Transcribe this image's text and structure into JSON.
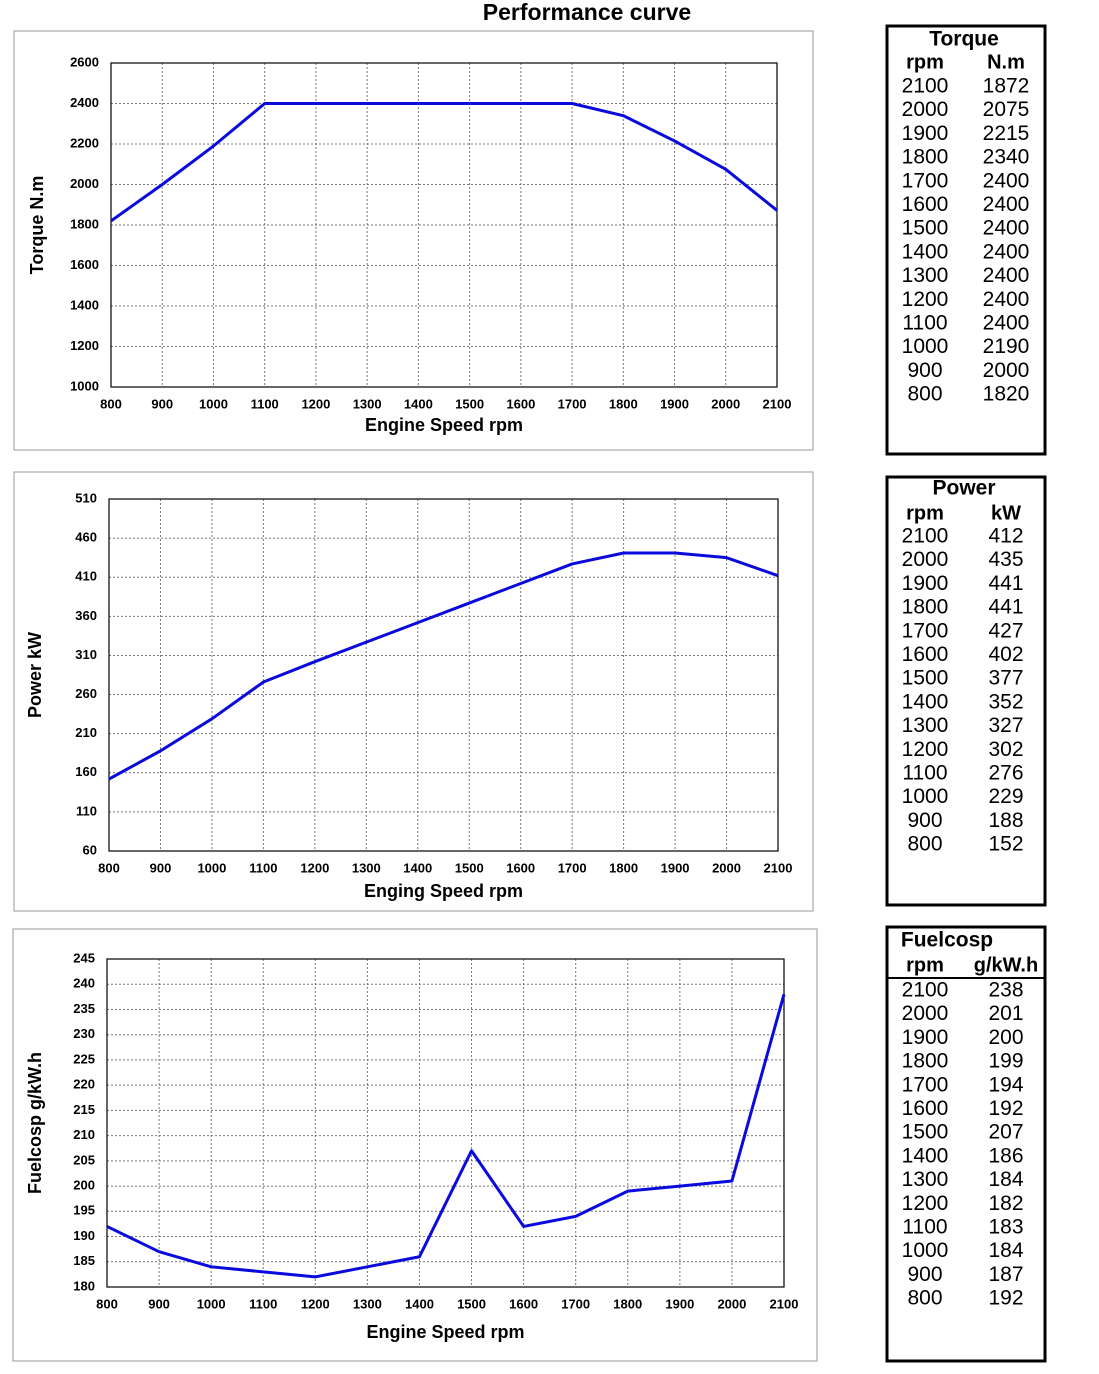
{
  "title": "Performance curve",
  "chart_data": [
    {
      "type": "line",
      "xlabel": "Engine Speed rpm",
      "ylabel": "Torque N.m",
      "color": "#0a0adc",
      "grid": true,
      "x": [
        800,
        900,
        1000,
        1100,
        1200,
        1300,
        1400,
        1500,
        1600,
        1700,
        1800,
        1900,
        2000,
        2100
      ],
      "values": [
        1820,
        2000,
        2190,
        2400,
        2400,
        2400,
        2400,
        2400,
        2400,
        2400,
        2340,
        2215,
        2075,
        1872
      ],
      "xlim": [
        800,
        2100
      ],
      "xticks": [
        800,
        900,
        1000,
        1100,
        1200,
        1300,
        1400,
        1500,
        1600,
        1700,
        1800,
        1900,
        2000,
        2100
      ],
      "ylim": [
        1000,
        2600
      ],
      "yticks": [
        1000,
        1200,
        1400,
        1600,
        1800,
        2000,
        2200,
        2400,
        2600
      ],
      "table": {
        "title": "Torque",
        "columns": [
          "rpm",
          "N.m"
        ],
        "rows": [
          [
            2100,
            1872
          ],
          [
            2000,
            2075
          ],
          [
            1900,
            2215
          ],
          [
            1800,
            2340
          ],
          [
            1700,
            2400
          ],
          [
            1600,
            2400
          ],
          [
            1500,
            2400
          ],
          [
            1400,
            2400
          ],
          [
            1300,
            2400
          ],
          [
            1200,
            2400
          ],
          [
            1100,
            2400
          ],
          [
            1000,
            2190
          ],
          [
            900,
            2000
          ],
          [
            800,
            1820
          ]
        ]
      }
    },
    {
      "type": "line",
      "xlabel": "Enging Speed rpm",
      "ylabel": "Power kW",
      "color": "#0a0adc",
      "grid": true,
      "x": [
        800,
        900,
        1000,
        1100,
        1200,
        1300,
        1400,
        1500,
        1600,
        1700,
        1800,
        1900,
        2000,
        2100
      ],
      "values": [
        152,
        188,
        229,
        276,
        302,
        327,
        352,
        377,
        402,
        427,
        441,
        441,
        435,
        412
      ],
      "xlim": [
        800,
        2100
      ],
      "xticks": [
        800,
        900,
        1000,
        1100,
        1200,
        1300,
        1400,
        1500,
        1600,
        1700,
        1800,
        1900,
        2000,
        2100
      ],
      "ylim": [
        60,
        510
      ],
      "yticks": [
        60,
        110,
        160,
        210,
        260,
        310,
        360,
        410,
        460,
        510
      ],
      "table": {
        "title": "Power",
        "columns": [
          "rpm",
          "kW"
        ],
        "rows": [
          [
            2100,
            412
          ],
          [
            2000,
            435
          ],
          [
            1900,
            441
          ],
          [
            1800,
            441
          ],
          [
            1700,
            427
          ],
          [
            1600,
            402
          ],
          [
            1500,
            377
          ],
          [
            1400,
            352
          ],
          [
            1300,
            327
          ],
          [
            1200,
            302
          ],
          [
            1100,
            276
          ],
          [
            1000,
            229
          ],
          [
            900,
            188
          ],
          [
            800,
            152
          ]
        ]
      }
    },
    {
      "type": "line",
      "xlabel": "Engine Speed rpm",
      "ylabel": "Fuelcosp g/kW.h",
      "color": "#0a0adc",
      "grid": true,
      "x": [
        800,
        900,
        1000,
        1100,
        1200,
        1300,
        1400,
        1500,
        1600,
        1700,
        1800,
        1900,
        2000,
        2100
      ],
      "values": [
        192,
        187,
        184,
        183,
        182,
        184,
        186,
        207,
        192,
        194,
        199,
        200,
        201,
        238
      ],
      "xlim": [
        800,
        2100
      ],
      "xticks": [
        800,
        900,
        1000,
        1100,
        1200,
        1300,
        1400,
        1500,
        1600,
        1700,
        1800,
        1900,
        2000,
        2100
      ],
      "ylim": [
        180,
        245
      ],
      "yticks": [
        180,
        185,
        190,
        195,
        200,
        205,
        210,
        215,
        220,
        225,
        230,
        235,
        240,
        245
      ],
      "table": {
        "title": "Fuelcosp",
        "columns": [
          "rpm",
          "g/kW.h"
        ],
        "rows": [
          [
            2100,
            238
          ],
          [
            2000,
            201
          ],
          [
            1900,
            200
          ],
          [
            1800,
            199
          ],
          [
            1700,
            194
          ],
          [
            1600,
            192
          ],
          [
            1500,
            207
          ],
          [
            1400,
            186
          ],
          [
            1300,
            184
          ],
          [
            1200,
            182
          ],
          [
            1100,
            183
          ],
          [
            1000,
            184
          ],
          [
            900,
            187
          ],
          [
            800,
            192
          ]
        ]
      }
    }
  ]
}
